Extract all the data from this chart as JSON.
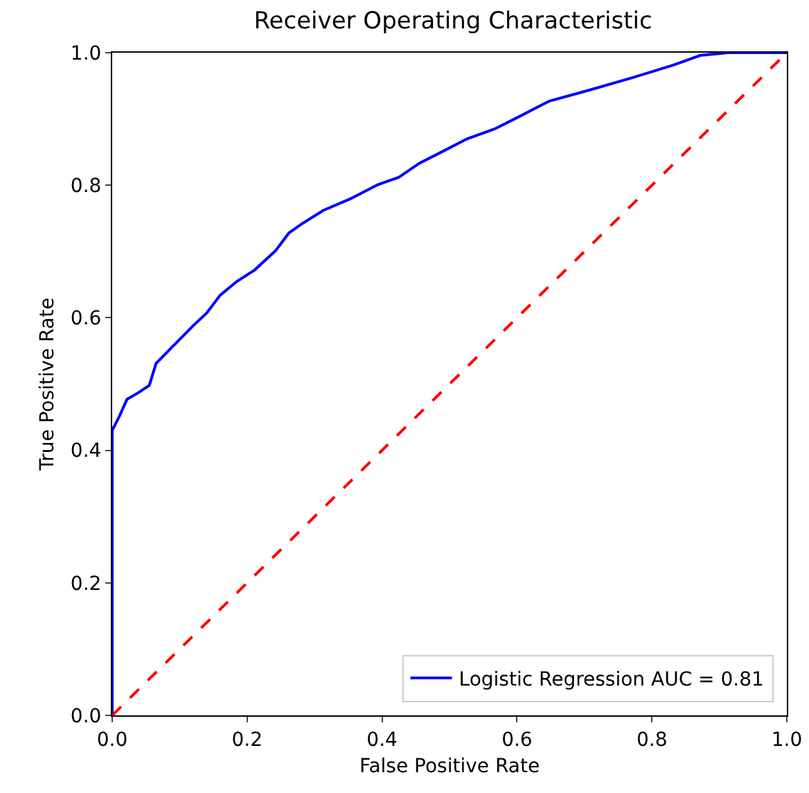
{
  "chart_data": {
    "type": "line",
    "title": "Receiver Operating Characteristic",
    "xlabel": "False Positive Rate",
    "ylabel": "True Positive Rate",
    "xlim": [
      0,
      1
    ],
    "ylim": [
      0,
      1
    ],
    "xticks": [
      {
        "value": 0,
        "label": "0.0"
      },
      0.2,
      0.4,
      0.6,
      0.8,
      {
        "value": 1,
        "label": "1.0"
      }
    ],
    "yticks": [
      {
        "value": 0,
        "label": "0.0"
      },
      0.2,
      0.4,
      0.6,
      0.8,
      {
        "value": 1,
        "label": "1.0"
      }
    ],
    "grid": false,
    "legend": "bottom right",
    "marker": "none",
    "series": [
      {
        "name": "Logistic Regression AUC = 0.81",
        "color": "#0000ff",
        "line_style": "solid",
        "x": [
          0,
          0,
          0,
          0.01,
          0.022,
          0.039,
          0.055,
          0.065,
          0.089,
          0.12,
          0.14,
          0.16,
          0.185,
          0.211,
          0.242,
          0.262,
          0.283,
          0.313,
          0.354,
          0.394,
          0.425,
          0.455,
          0.486,
          0.526,
          0.567,
          0.608,
          0.648,
          0.709,
          0.77,
          0.831,
          0.872,
          0.913,
          1
        ],
        "values": [
          0,
          0.36,
          0.43,
          0.45,
          0.477,
          0.487,
          0.498,
          0.531,
          0.556,
          0.588,
          0.607,
          0.634,
          0.655,
          0.672,
          0.701,
          0.728,
          0.743,
          0.762,
          0.78,
          0.801,
          0.812,
          0.833,
          0.849,
          0.87,
          0.885,
          0.906,
          0.927,
          0.944,
          0.962,
          0.981,
          0.996,
          1,
          1
        ]
      },
      {
        "color": "#ff0000",
        "line_style": "dashed",
        "x": [
          0,
          1
        ],
        "values": [
          0,
          1
        ]
      }
    ]
  }
}
